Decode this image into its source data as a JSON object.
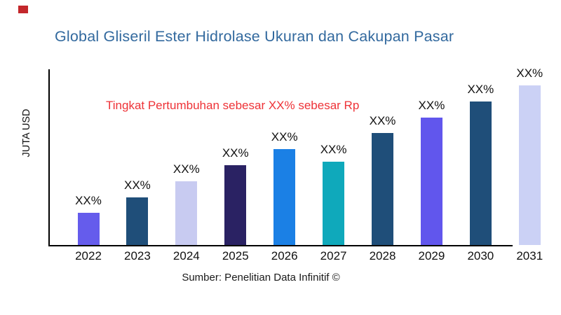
{
  "brand_mark": {
    "name": "red-square-logo",
    "color": "#C3272B"
  },
  "header": {
    "title": "Global Gliseril Ester Hidrolase Ukuran dan Cakupan Pasar",
    "title_color": "#32699E"
  },
  "annotation": {
    "text": "Tingkat Pertumbuhan sebesar XX% sebesar Rp",
    "color": "#EE3237"
  },
  "footer": {
    "source": "Sumber: Penelitian Data Infinitif ©"
  },
  "chart_data": {
    "type": "bar",
    "title": "Global Gliseril Ester Hidrolase Ukuran dan Cakupan Pasar",
    "xlabel": "",
    "ylabel": "JUTA USD",
    "categories": [
      "2022",
      "2023",
      "2024",
      "2025",
      "2026",
      "2027",
      "2028",
      "2029",
      "2030",
      "2031"
    ],
    "values": [
      20,
      30,
      40,
      50,
      60,
      52,
      70,
      80,
      90,
      100
    ],
    "value_labels": [
      "XX%",
      "XX%",
      "XX%",
      "XX%",
      "XX%",
      "XX%",
      "XX%",
      "XX%",
      "XX%",
      "XX%"
    ],
    "bar_colors": [
      "#655CEC",
      "#1F4E79",
      "#C8CBF1",
      "#2A2263",
      "#1B80E5",
      "#0FA9BB",
      "#1F4E79",
      "#6156ED",
      "#1F4E79",
      "#CBD1F5"
    ],
    "ylim": [
      0,
      105
    ],
    "grid": false,
    "legend": false,
    "annotations": [
      "Tingkat Pertumbuhan sebesar XX% sebesar Rp"
    ]
  }
}
